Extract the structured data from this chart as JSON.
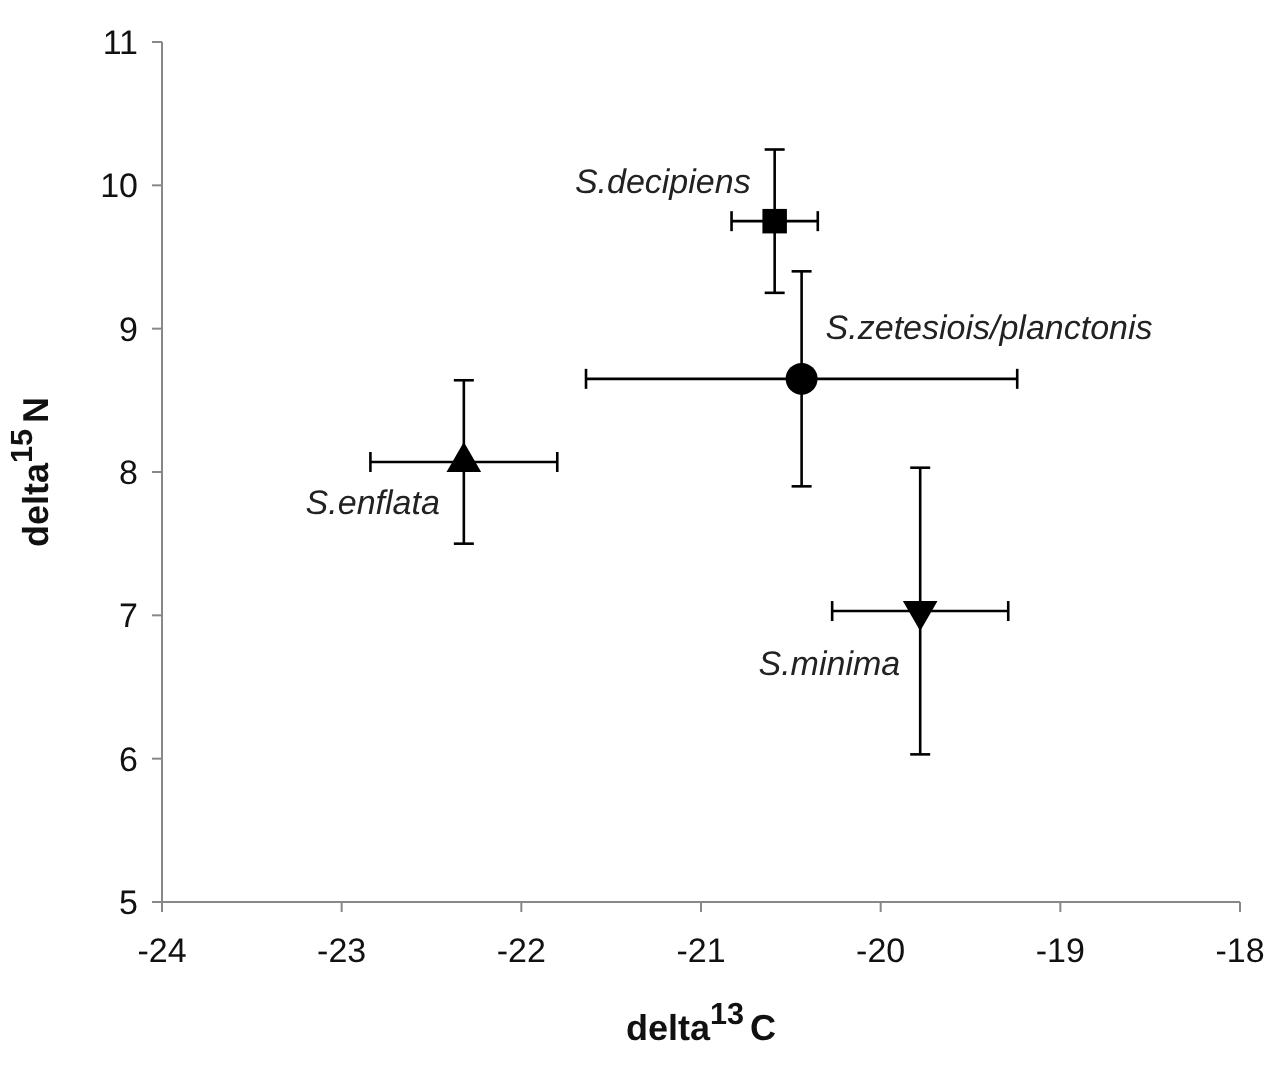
{
  "chart_data": {
    "type": "scatter",
    "xlabel": "delta$^{13}$C",
    "ylabel": "delta$^{15}$N",
    "xlim": [
      -24,
      -18
    ],
    "xticks": [
      -24,
      -23,
      -22,
      -21,
      -20,
      -19,
      -18
    ],
    "ylim": [
      5,
      11
    ],
    "yticks": [
      5,
      6,
      7,
      8,
      9,
      10,
      11
    ],
    "grid": false,
    "series": [
      {
        "name": "S.decipiens",
        "color": "#000000",
        "marker": "square",
        "x": [
          -20.59
        ],
        "values": [
          9.75
        ],
        "errors": [
          0.5
        ],
        "xerrors": [
          0.24
        ]
      },
      {
        "name": "S.zetesiois/planctonis",
        "color": "#000000",
        "marker": "circle",
        "x": [
          -20.44
        ],
        "values": [
          8.65
        ],
        "errors": [
          0.75
        ],
        "xerrors": [
          1.2
        ]
      },
      {
        "name": "S.enflata",
        "color": "#000000",
        "marker": "triangle",
        "x": [
          -22.32
        ],
        "values": [
          8.07
        ],
        "errors": [
          0.57
        ],
        "xerrors": [
          0.52
        ]
      },
      {
        "name": "S.minima",
        "color": "#000000",
        "marker": "triangle-down",
        "x": [
          -19.78
        ],
        "values": [
          7.03
        ],
        "errors": [
          1.0
        ],
        "xerrors": [
          0.49
        ]
      }
    ]
  }
}
